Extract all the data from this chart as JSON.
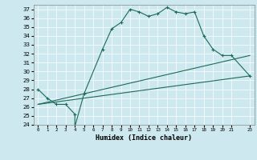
{
  "xlabel": "Humidex (Indice chaleur)",
  "bg_color": "#cde8ee",
  "line_color": "#1a6b5a",
  "xlim": [
    -0.5,
    23.5
  ],
  "ylim": [
    24,
    37.5
  ],
  "yticks": [
    24,
    25,
    26,
    27,
    28,
    29,
    30,
    31,
    32,
    33,
    34,
    35,
    36,
    37
  ],
  "xtick_positions": [
    0,
    1,
    2,
    3,
    4,
    5,
    6,
    7,
    8,
    9,
    10,
    11,
    12,
    13,
    14,
    15,
    16,
    17,
    18,
    19,
    20,
    21,
    23
  ],
  "xtick_labels": [
    "0",
    "1",
    "2",
    "3",
    "4",
    "5",
    "6",
    "7",
    "8",
    "9",
    "10",
    "11",
    "12",
    "13",
    "14",
    "15",
    "16",
    "17",
    "18",
    "19",
    "20",
    "21",
    "23"
  ],
  "humidex_curve": {
    "x": [
      0,
      1,
      2,
      3,
      4,
      4,
      5,
      7,
      8,
      9,
      10,
      11,
      12,
      13,
      14,
      15,
      16,
      17,
      18,
      19,
      20,
      21,
      23
    ],
    "y": [
      28,
      27,
      26.3,
      26.3,
      25.2,
      23.8,
      27.5,
      32.5,
      34.8,
      35.5,
      37,
      36.7,
      36.2,
      36.5,
      37.2,
      36.7,
      36.5,
      36.7,
      34,
      32.5,
      31.8,
      31.8,
      29.5
    ]
  },
  "line1": {
    "x": [
      0,
      23
    ],
    "y": [
      26.3,
      31.8
    ]
  },
  "line2": {
    "x": [
      0,
      23
    ],
    "y": [
      26.3,
      29.5
    ]
  }
}
